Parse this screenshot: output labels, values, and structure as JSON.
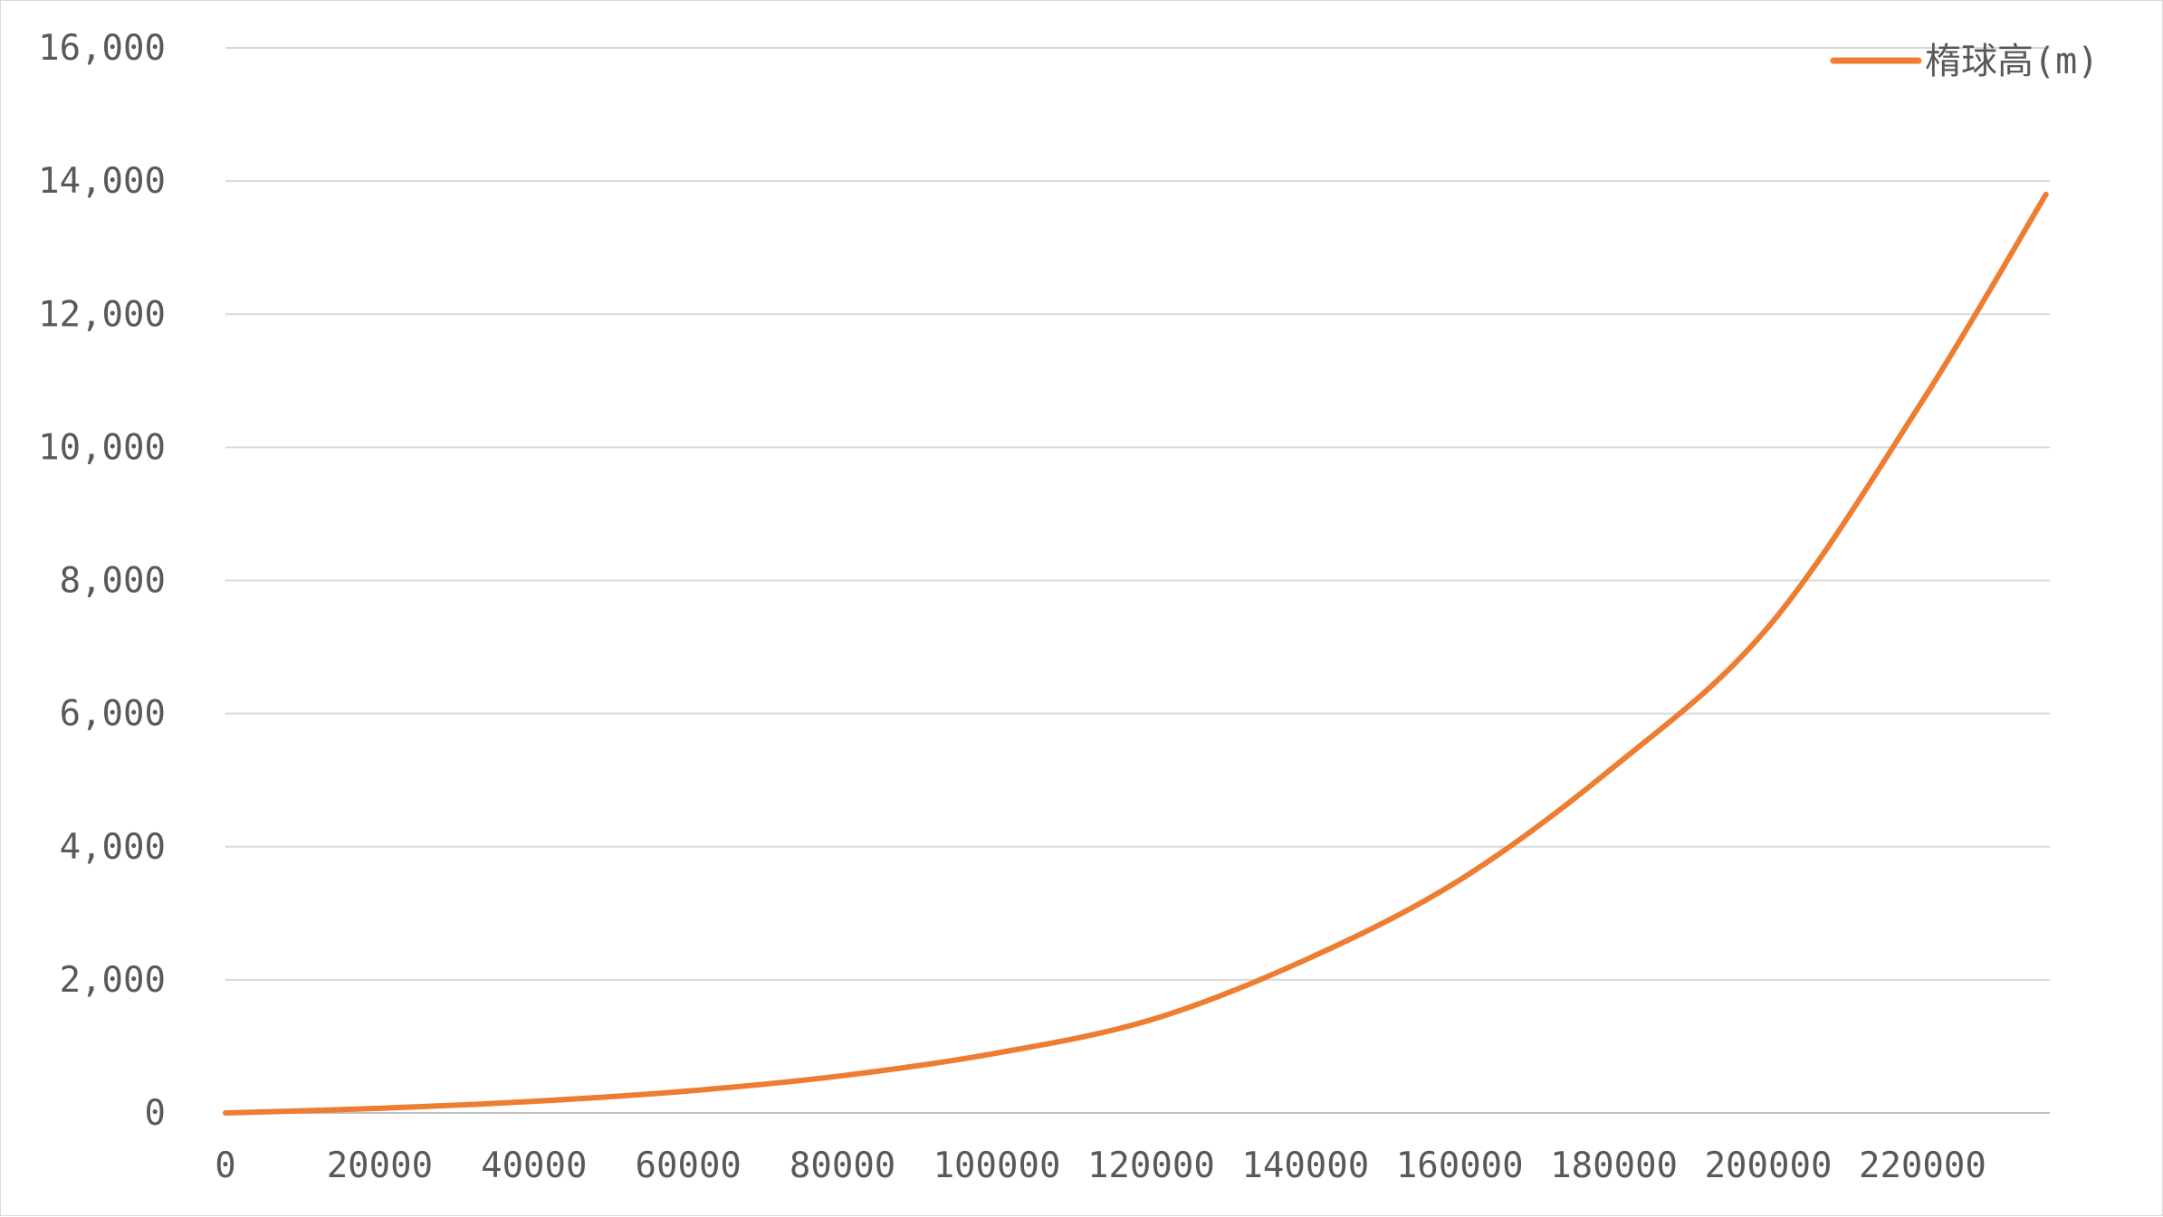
{
  "chart_data": {
    "type": "line",
    "title": "",
    "xlabel": "",
    "ylabel": "",
    "xlim": [
      0,
      236500
    ],
    "ylim": [
      0,
      16000
    ],
    "x_ticks": [
      "0",
      "20000",
      "40000",
      "60000",
      "80000",
      "100000",
      "120000",
      "140000",
      "160000",
      "180000",
      "200000",
      "220000"
    ],
    "y_ticks": [
      "0",
      "2,000",
      "4,000",
      "6,000",
      "8,000",
      "10,000",
      "12,000",
      "14,000",
      "16,000"
    ],
    "grid": "horizontal",
    "legend_position": "top-right",
    "series": [
      {
        "name": "楕球高(m)",
        "color": "#ed7d31",
        "points": [
          [
            0,
            0
          ],
          [
            20000,
            70
          ],
          [
            40000,
            175
          ],
          [
            60000,
            330
          ],
          [
            80000,
            560
          ],
          [
            100000,
            900
          ],
          [
            120000,
            1400
          ],
          [
            140000,
            2300
          ],
          [
            160000,
            3500
          ],
          [
            180000,
            5200
          ],
          [
            200000,
            7300
          ],
          [
            220000,
            10700
          ],
          [
            236000,
            13800
          ]
        ]
      }
    ]
  }
}
